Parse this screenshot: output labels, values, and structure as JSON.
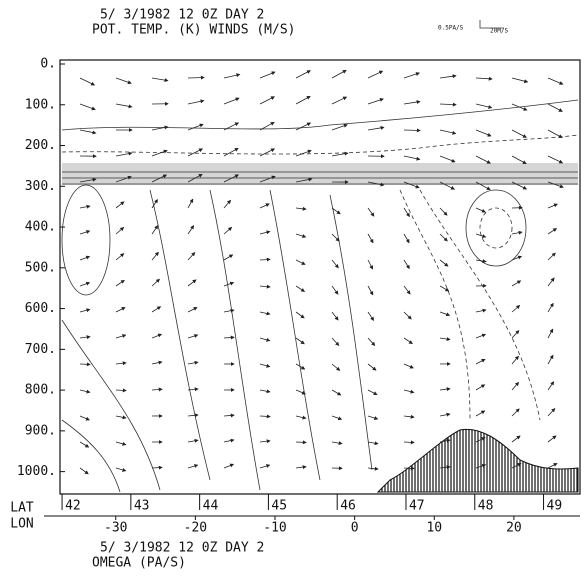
{
  "chart_data": {
    "type": "cross-section",
    "title": "5/ 3/1982  12  0Z  DAY  2",
    "subtitle": "POT. TEMP.  (K)   WINDS   (M/S)",
    "scale_labels": [
      "0.5PA/S",
      "20M/S"
    ],
    "footer_title": "5/ 3/1982  12  0Z  DAY  2",
    "footer_subtitle": "OMEGA     (PA/S)",
    "x_axis_label": "LAT",
    "x2_axis_label": "LON",
    "ylim": [
      0,
      1050
    ],
    "y_inverted": true,
    "yticks": [
      {
        "value": 0,
        "label": "0."
      },
      {
        "value": 100,
        "label": "100."
      },
      {
        "value": 200,
        "label": "200."
      },
      {
        "value": 300,
        "label": "300."
      },
      {
        "value": 400,
        "label": "400."
      },
      {
        "value": 500,
        "label": "500."
      },
      {
        "value": 600,
        "label": "600."
      },
      {
        "value": 700,
        "label": "700."
      },
      {
        "value": 800,
        "label": "800."
      },
      {
        "value": 900,
        "label": "900."
      },
      {
        "value": 1000,
        "label": "1000."
      }
    ],
    "xlim": [
      41.97,
      49.53
    ],
    "xticks": [
      42,
      43,
      44,
      45,
      46,
      47,
      48,
      49
    ],
    "x2lim": [
      -37,
      28.3
    ],
    "x2ticks": [
      -30,
      -20,
      -10,
      0,
      10,
      20
    ]
  }
}
